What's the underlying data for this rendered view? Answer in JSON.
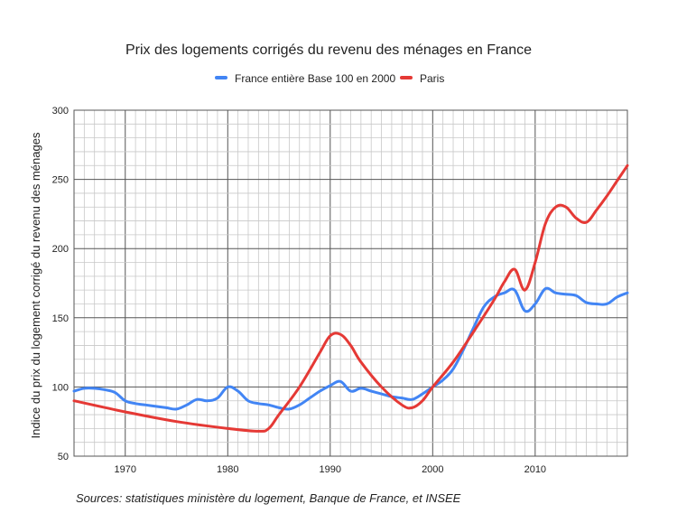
{
  "chart_data": {
    "type": "line",
    "title": "Prix des logements corrigés du revenu des ménages en France",
    "xlabel": "",
    "ylabel": "Indice du prix du logement corrigé du revenu des ménages",
    "xlim": [
      1965,
      2019
    ],
    "ylim": [
      50,
      300
    ],
    "x_ticks": [
      1970,
      1980,
      1990,
      2000,
      2010
    ],
    "y_ticks": [
      50,
      100,
      150,
      200,
      250,
      300
    ],
    "grid": true,
    "legend_position": "top-center",
    "source": "Sources: statistiques ministère du logement, Banque de France, et INSEE",
    "series": [
      {
        "name": "France entière Base 100 en 2000",
        "color": "#4285F4",
        "points": [
          [
            1965,
            97
          ],
          [
            1966,
            99
          ],
          [
            1967,
            99
          ],
          [
            1968,
            98
          ],
          [
            1969,
            96
          ],
          [
            1970,
            90
          ],
          [
            1971,
            88
          ],
          [
            1972,
            87
          ],
          [
            1973,
            86
          ],
          [
            1974,
            85
          ],
          [
            1975,
            84
          ],
          [
            1976,
            87
          ],
          [
            1977,
            91
          ],
          [
            1978,
            90
          ],
          [
            1979,
            92
          ],
          [
            1980,
            100
          ],
          [
            1981,
            97
          ],
          [
            1982,
            90
          ],
          [
            1983,
            88
          ],
          [
            1984,
            87
          ],
          [
            1985,
            85
          ],
          [
            1986,
            84
          ],
          [
            1987,
            87
          ],
          [
            1988,
            92
          ],
          [
            1989,
            97
          ],
          [
            1990,
            101
          ],
          [
            1991,
            104
          ],
          [
            1992,
            97
          ],
          [
            1993,
            99
          ],
          [
            1994,
            97
          ],
          [
            1995,
            95
          ],
          [
            1996,
            93
          ],
          [
            1997,
            92
          ],
          [
            1998,
            91
          ],
          [
            1999,
            95
          ],
          [
            2000,
            100
          ],
          [
            2001,
            105
          ],
          [
            2002,
            113
          ],
          [
            2003,
            127
          ],
          [
            2004,
            143
          ],
          [
            2005,
            158
          ],
          [
            2006,
            165
          ],
          [
            2007,
            168
          ],
          [
            2008,
            170
          ],
          [
            2009,
            155
          ],
          [
            2010,
            160
          ],
          [
            2011,
            171
          ],
          [
            2012,
            168
          ],
          [
            2013,
            167
          ],
          [
            2014,
            166
          ],
          [
            2015,
            161
          ],
          [
            2016,
            160
          ],
          [
            2017,
            160
          ],
          [
            2018,
            165
          ],
          [
            2019,
            168
          ]
        ]
      },
      {
        "name": "Paris",
        "color": "#E53935",
        "points": [
          [
            1965,
            90
          ],
          [
            1970,
            82
          ],
          [
            1975,
            75
          ],
          [
            1980,
            70
          ],
          [
            1983,
            68
          ],
          [
            1984,
            70
          ],
          [
            1985,
            80
          ],
          [
            1987,
            100
          ],
          [
            1989,
            125
          ],
          [
            1990,
            137
          ],
          [
            1991,
            138
          ],
          [
            1992,
            130
          ],
          [
            1993,
            118
          ],
          [
            1995,
            100
          ],
          [
            1997,
            87
          ],
          [
            1998,
            85
          ],
          [
            1999,
            90
          ],
          [
            2000,
            100
          ],
          [
            2002,
            118
          ],
          [
            2004,
            140
          ],
          [
            2006,
            163
          ],
          [
            2007,
            176
          ],
          [
            2008,
            185
          ],
          [
            2009,
            170
          ],
          [
            2010,
            190
          ],
          [
            2011,
            218
          ],
          [
            2012,
            230
          ],
          [
            2013,
            230
          ],
          [
            2014,
            222
          ],
          [
            2015,
            219
          ],
          [
            2016,
            228
          ],
          [
            2017,
            238
          ],
          [
            2018,
            249
          ],
          [
            2019,
            260
          ]
        ]
      }
    ]
  }
}
